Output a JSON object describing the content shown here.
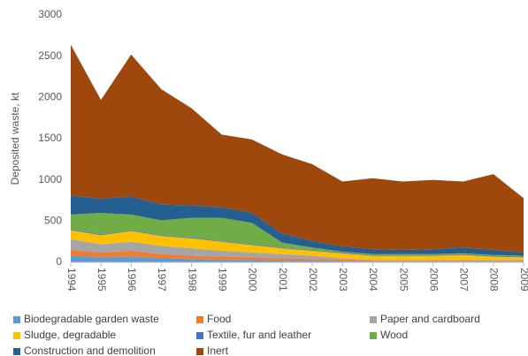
{
  "chart_data": {
    "type": "stacked_area",
    "y_label": "Deposited waste, kt",
    "categories": [
      "1994",
      "1995",
      "1996",
      "1997",
      "1998",
      "1999",
      "2000",
      "2001",
      "2002",
      "2003",
      "2004",
      "2005",
      "2006",
      "2007",
      "2008",
      "2009"
    ],
    "ylim": [
      0,
      3000
    ],
    "yticks": [
      0,
      500,
      1000,
      1500,
      2000,
      2500,
      3000
    ],
    "grid": false,
    "legend": "bottom",
    "series": [
      {
        "name": "Biodegradable garden waste",
        "color": "#5b9bd5",
        "values": [
          80,
          60,
          70,
          50,
          40,
          30,
          30,
          20,
          20,
          10,
          10,
          10,
          10,
          10,
          10,
          10
        ]
      },
      {
        "name": "Food",
        "color": "#ed7d31",
        "values": [
          70,
          60,
          70,
          50,
          40,
          40,
          30,
          30,
          20,
          20,
          10,
          10,
          10,
          10,
          10,
          10
        ]
      },
      {
        "name": "Paper and cardboard",
        "color": "#a5a5a5",
        "values": [
          130,
          100,
          110,
          100,
          90,
          70,
          60,
          50,
          40,
          20,
          10,
          10,
          10,
          10,
          10,
          10
        ]
      },
      {
        "name": "Sludge, degradable",
        "color": "#ffc000",
        "values": [
          110,
          110,
          130,
          120,
          120,
          110,
          90,
          70,
          60,
          60,
          50,
          50,
          50,
          60,
          40,
          30
        ]
      },
      {
        "name": "Textile, fur and leather",
        "color": "#4472c4",
        "values": [
          10,
          10,
          10,
          10,
          10,
          10,
          10,
          10,
          10,
          10,
          10,
          10,
          10,
          10,
          10,
          10
        ]
      },
      {
        "name": "Wood",
        "color": "#70ad47",
        "values": [
          180,
          260,
          190,
          180,
          240,
          280,
          260,
          60,
          30,
          10,
          10,
          10,
          10,
          10,
          10,
          10
        ]
      },
      {
        "name": "Construction and demolition",
        "color": "#255e91",
        "values": [
          230,
          170,
          220,
          190,
          150,
          130,
          120,
          110,
          80,
          60,
          60,
          50,
          60,
          70,
          60,
          40
        ]
      },
      {
        "name": "Inert",
        "color": "#9e480e",
        "values": [
          1830,
          1200,
          1720,
          1400,
          1180,
          880,
          890,
          960,
          930,
          790,
          860,
          830,
          840,
          800,
          920,
          660
        ]
      }
    ]
  }
}
